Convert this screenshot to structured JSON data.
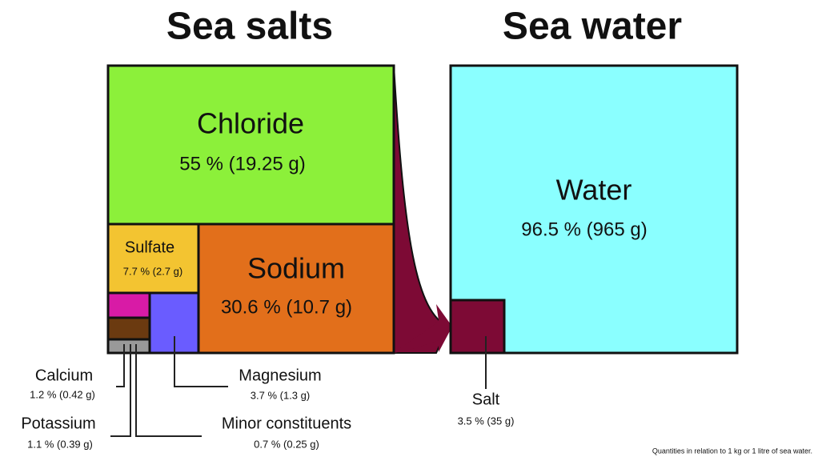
{
  "titles": {
    "left": "Sea salts",
    "right": "Sea water"
  },
  "boxes": {
    "chloride": {
      "name": "Chloride",
      "amount": "55 % (19.25 g)"
    },
    "sulfate": {
      "name": "Sulfate",
      "amount": "7.7 % (2.7 g)"
    },
    "sodium": {
      "name": "Sodium",
      "amount": "30.6 % (10.7 g)"
    },
    "calcium": {
      "name": "Calcium",
      "amount": "1.2 % (0.42 g)"
    },
    "potassium": {
      "name": "Potassium",
      "amount": "1.1 % (0.39 g)"
    },
    "magnesium": {
      "name": "Magnesium",
      "amount": "3.7 % (1.3 g)"
    },
    "minor": {
      "name": "Minor constituents",
      "amount": "0.7 % (0.25 g)"
    },
    "water": {
      "name": "Water",
      "amount": "96.5 % (965 g)"
    },
    "salt": {
      "name": "Salt",
      "amount": "3.5 % (35 g)"
    }
  },
  "footnote": "Quantities in relation to 1 kg or 1 litre of sea water."
}
